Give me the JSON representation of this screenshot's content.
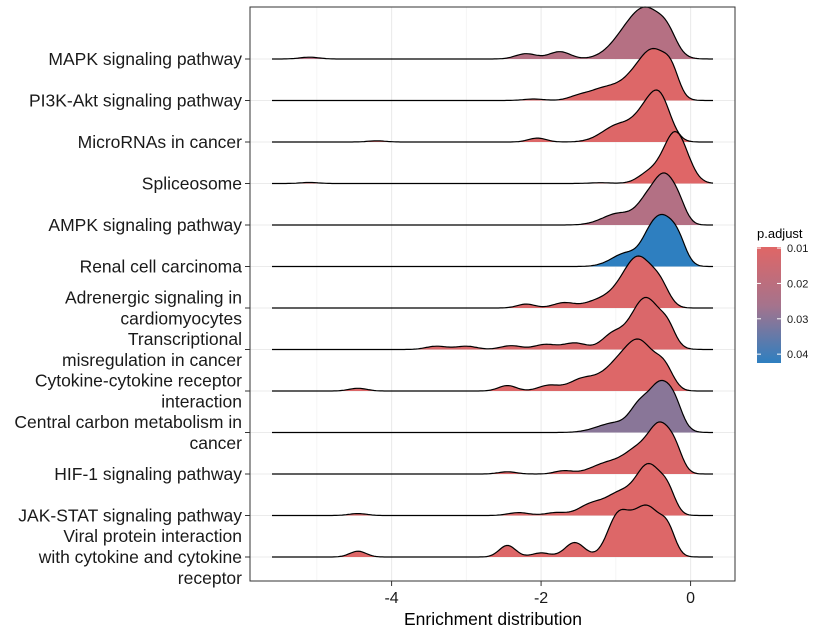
{
  "chart_data": {
    "type": "ridgeline",
    "xlabel": "Enrichment distribution",
    "xlim": [
      -5.6,
      0.3
    ],
    "xticks": [
      -4,
      -2,
      0
    ],
    "grid": true,
    "legend": {
      "title": "p.adjust",
      "placement": "right",
      "ticks": [
        "0.01",
        "0.02",
        "0.03",
        "0.04"
      ],
      "tick_values": [
        0.01,
        0.02,
        0.03,
        0.04
      ],
      "range": [
        0.0097,
        0.0425
      ],
      "color_low": "#e06666",
      "color_high": "#2e7fc0"
    },
    "series": [
      {
        "label": "MAPK signaling pathway",
        "p_adjust": 0.022,
        "range": [
          -5.6,
          0.3
        ],
        "peaks": [
          [
            -5.1,
            0.045,
            0.13
          ],
          [
            -2.2,
            0.13,
            0.14
          ],
          [
            -1.75,
            0.18,
            0.14
          ],
          [
            -0.85,
            0.55,
            0.22
          ],
          [
            -0.55,
            1.0,
            0.21
          ],
          [
            -0.3,
            0.35,
            0.12
          ]
        ]
      },
      {
        "label": "PI3K-Akt signaling pathway",
        "p_adjust": 0.0105,
        "range": [
          -5.6,
          0.3
        ],
        "peaks": [
          [
            -2.1,
            0.04,
            0.14
          ],
          [
            -1.5,
            0.1,
            0.14
          ],
          [
            -1.15,
            0.32,
            0.2
          ],
          [
            -0.7,
            0.7,
            0.2
          ],
          [
            -0.45,
            1.0,
            0.17
          ],
          [
            -0.25,
            0.5,
            0.1
          ]
        ]
      },
      {
        "label": "MicroRNAs in cancer",
        "p_adjust": 0.0105,
        "range": [
          -5.6,
          0.3
        ],
        "peaks": [
          [
            -4.2,
            0.03,
            0.12
          ],
          [
            -2.05,
            0.1,
            0.12
          ],
          [
            -0.95,
            0.45,
            0.22
          ],
          [
            -0.6,
            0.6,
            0.15
          ],
          [
            -0.4,
            1.0,
            0.14
          ]
        ]
      },
      {
        "label": "Spliceosome",
        "p_adjust": 0.01,
        "range": [
          -5.6,
          0.3
        ],
        "peaks": [
          [
            -5.1,
            0.02,
            0.12
          ],
          [
            -1.2,
            0.015,
            0.15
          ],
          [
            -0.55,
            0.2,
            0.15
          ],
          [
            -0.2,
            1.0,
            0.16
          ]
        ]
      },
      {
        "label": "AMPK signaling pathway",
        "p_adjust": 0.0225,
        "range": [
          -5.6,
          0.3
        ],
        "peaks": [
          [
            -0.95,
            0.25,
            0.22
          ],
          [
            -0.6,
            0.35,
            0.13
          ],
          [
            -0.35,
            1.0,
            0.15
          ],
          [
            -0.15,
            0.25,
            0.1
          ]
        ]
      },
      {
        "label": "Renal cell carcinoma",
        "p_adjust": 0.0425,
        "range": [
          -5.6,
          0.3
        ],
        "peaks": [
          [
            -0.85,
            0.3,
            0.2
          ],
          [
            -0.55,
            0.35,
            0.12
          ],
          [
            -0.35,
            1.0,
            0.16
          ],
          [
            -0.15,
            0.3,
            0.1
          ]
        ]
      },
      {
        "label": "Adrenergic signaling in cardiomyocytes",
        "p_adjust": 0.011,
        "range": [
          -5.6,
          0.3
        ],
        "peaks": [
          [
            -2.2,
            0.1,
            0.12
          ],
          [
            -1.7,
            0.13,
            0.14
          ],
          [
            -1.2,
            0.2,
            0.2
          ],
          [
            -0.85,
            0.55,
            0.18
          ],
          [
            -0.65,
            0.95,
            0.17
          ],
          [
            -0.4,
            0.45,
            0.12
          ]
        ]
      },
      {
        "label": "Transcriptional misregulation in cancer",
        "p_adjust": 0.0115,
        "range": [
          -5.6,
          0.3
        ],
        "peaks": [
          [
            -3.4,
            0.06,
            0.14
          ],
          [
            -3.0,
            0.06,
            0.14
          ],
          [
            -2.4,
            0.07,
            0.14
          ],
          [
            -1.95,
            0.09,
            0.14
          ],
          [
            -1.55,
            0.12,
            0.16
          ],
          [
            -1.05,
            0.25,
            0.14
          ],
          [
            -0.6,
            0.95,
            0.2
          ],
          [
            -0.3,
            0.25,
            0.1
          ]
        ]
      },
      {
        "label": "Cytokine-cytokine receptor interaction",
        "p_adjust": 0.0105,
        "range": [
          -5.6,
          0.3
        ],
        "peaks": [
          [
            -4.45,
            0.06,
            0.12
          ],
          [
            -2.45,
            0.12,
            0.12
          ],
          [
            -1.9,
            0.12,
            0.14
          ],
          [
            -1.45,
            0.25,
            0.18
          ],
          [
            -0.95,
            0.6,
            0.22
          ],
          [
            -0.65,
            0.85,
            0.18
          ],
          [
            -0.35,
            0.45,
            0.12
          ]
        ]
      },
      {
        "label": "Central carbon metabolism in cancer",
        "p_adjust": 0.03,
        "range": [
          -5.6,
          0.3
        ],
        "peaks": [
          [
            -1.0,
            0.2,
            0.24
          ],
          [
            -0.7,
            0.35,
            0.12
          ],
          [
            -0.4,
            1.0,
            0.17
          ],
          [
            -0.2,
            0.25,
            0.1
          ]
        ]
      },
      {
        "label": "HIF-1 signaling pathway",
        "p_adjust": 0.011,
        "range": [
          -5.6,
          0.3
        ],
        "peaks": [
          [
            -2.45,
            0.05,
            0.12
          ],
          [
            -1.7,
            0.07,
            0.12
          ],
          [
            -1.1,
            0.25,
            0.22
          ],
          [
            -0.7,
            0.5,
            0.18
          ],
          [
            -0.4,
            1.0,
            0.15
          ],
          [
            -0.2,
            0.35,
            0.1
          ]
        ]
      },
      {
        "label": "JAK-STAT signaling pathway",
        "p_adjust": 0.0105,
        "range": [
          -5.6,
          0.3
        ],
        "peaks": [
          [
            -4.45,
            0.04,
            0.12
          ],
          [
            -2.3,
            0.06,
            0.14
          ],
          [
            -1.8,
            0.06,
            0.14
          ],
          [
            -1.35,
            0.2,
            0.16
          ],
          [
            -0.95,
            0.45,
            0.2
          ],
          [
            -0.55,
            1.0,
            0.17
          ],
          [
            -0.3,
            0.35,
            0.1
          ]
        ]
      },
      {
        "label": "Viral protein interaction with cytokine and cytokine receptor",
        "p_adjust": 0.0105,
        "range": [
          -5.6,
          0.3
        ],
        "peaks": [
          [
            -4.45,
            0.1,
            0.11
          ],
          [
            -2.45,
            0.2,
            0.11
          ],
          [
            -2.0,
            0.07,
            0.12
          ],
          [
            -1.55,
            0.25,
            0.13
          ],
          [
            -1.0,
            0.4,
            0.13
          ],
          [
            -0.85,
            0.45,
            0.18
          ],
          [
            -0.55,
            0.75,
            0.17
          ],
          [
            -0.3,
            0.35,
            0.1
          ]
        ]
      }
    ],
    "label_lines": [
      [
        "MAPK signaling pathway"
      ],
      [
        "PI3K-Akt signaling pathway"
      ],
      [
        "MicroRNAs in cancer"
      ],
      [
        "Spliceosome"
      ],
      [
        "AMPK signaling pathway"
      ],
      [
        "Renal cell carcinoma"
      ],
      [
        "Adrenergic signaling in",
        "cardiomyocytes"
      ],
      [
        "Transcriptional",
        "misregulation in cancer"
      ],
      [
        "Cytokine-cytokine receptor",
        "interaction"
      ],
      [
        "Central carbon metabolism in",
        "cancer"
      ],
      [
        "HIF-1 signaling pathway"
      ],
      [
        "JAK-STAT signaling pathway"
      ],
      [
        "Viral protein interaction",
        "with cytokine and cytokine",
        "receptor"
      ]
    ]
  }
}
